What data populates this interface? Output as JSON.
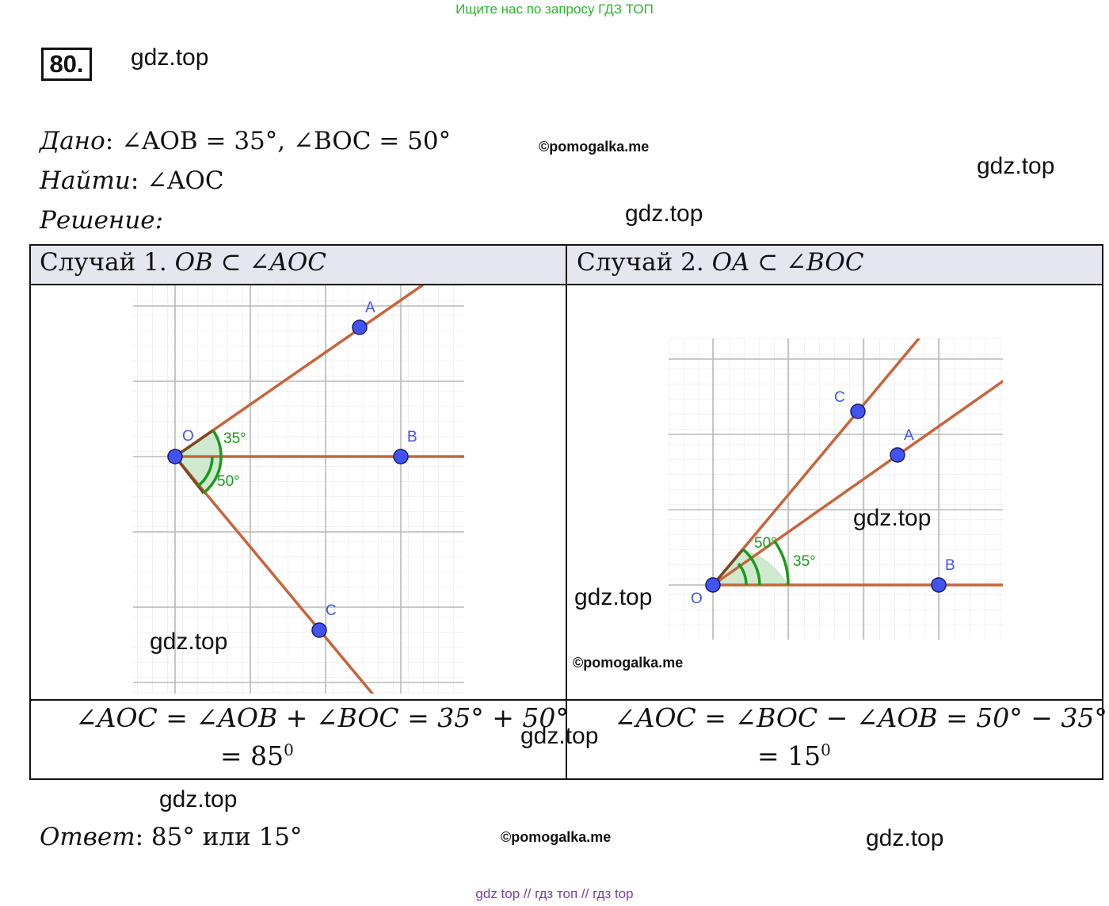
{
  "top_hint": "Ищите нас по запросу ГДЗ ТОП",
  "task_number": "80.",
  "watermarks": {
    "gdz": "gdz.top",
    "copyright": "©pomogalka.me"
  },
  "given": {
    "label": "Дано",
    "text": ": ∠AOB = 35°, ∠BOC = 50°"
  },
  "find": {
    "label": "Найти",
    "text": ": ∠AOC"
  },
  "solution_label": "Решение:",
  "case1": {
    "title": "Случай 1.",
    "condition": "OB ⊂ ∠AOC",
    "formula_line1": "∠AOC = ∠AOB + ∠BOC = 35° + 50°",
    "formula_line2_prefix": "= 85",
    "formula_line2_sup": "0",
    "figure": {
      "label_O": "O",
      "label_A": "A",
      "label_B": "B",
      "label_C": "C",
      "angle_small": "35°",
      "angle_large": "50°"
    }
  },
  "case2": {
    "title": "Случай 2.",
    "condition": "OA ⊂ ∠BOC",
    "formula_line1": "∠AOC = ∠BOC − ∠AOB = 50° − 35°",
    "formula_line2_prefix": "= 15",
    "formula_line2_sup": "0",
    "figure": {
      "label_O": "O",
      "label_A": "A",
      "label_B": "B",
      "label_C": "C",
      "angle_small": "35°",
      "angle_large": "50°"
    }
  },
  "answer": {
    "label": "Ответ",
    "text": ": 85° или 15°"
  },
  "footer": "gdz top  //  гдз топ  //  гдз top",
  "colors": {
    "ray": "#c8643a",
    "point": "#4353f0",
    "angle": "#1a9a1a",
    "angle_fill": "#cfe9cf",
    "grid_major": "#b9b9b9",
    "grid_minor": "#e4e4e4"
  }
}
